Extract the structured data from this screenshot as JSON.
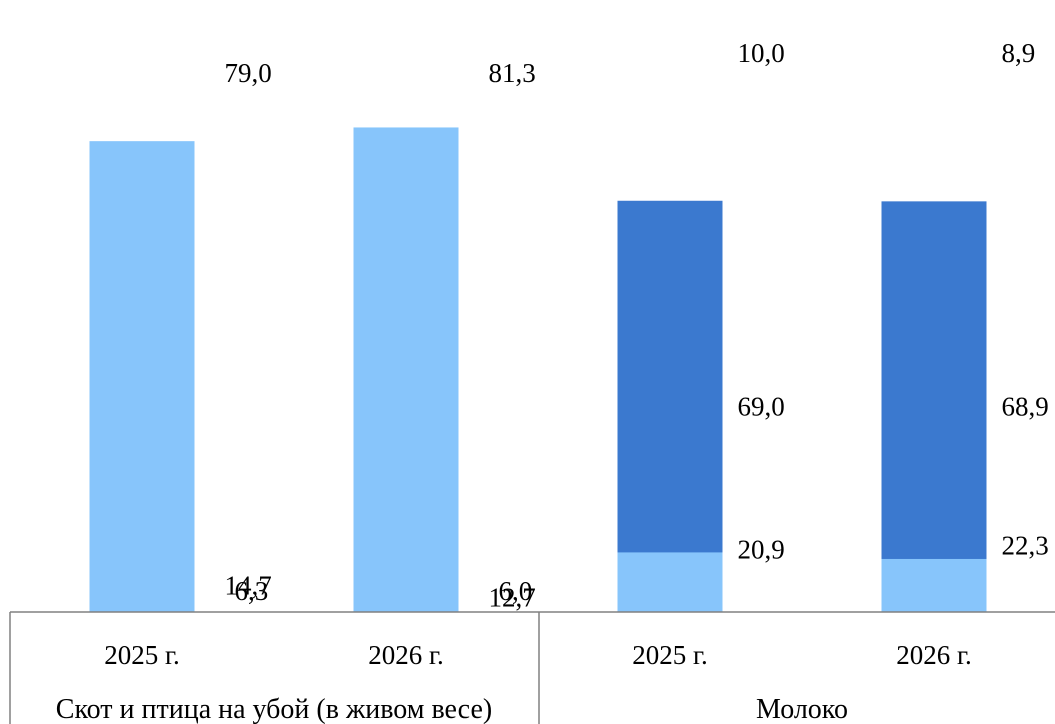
{
  "chart_data": {
    "type": "bar",
    "stacked": true,
    "percent_stacked": true,
    "ylim": [
      0,
      100
    ],
    "categories": [
      "2025 г.",
      "2026 г.",
      "2025 г.",
      "2026 г."
    ],
    "groups": [
      {
        "label": "Скот и птица на убой (в живом весе)",
        "categories": [
          "2025 г.",
          "2026 г."
        ]
      },
      {
        "label": "Молоко",
        "categories": [
          "2025 г.",
          "2026 г."
        ]
      }
    ],
    "series": [
      {
        "color": "#3d3a9c",
        "values": [
          6.3,
          6.0,
          20.9,
          22.3
        ],
        "labels": [
          "6,3",
          "6,0",
          "20,9",
          "22,3"
        ]
      },
      {
        "color": "#3b79cf",
        "values": [
          14.7,
          12.7,
          69.0,
          68.9
        ],
        "labels": [
          "14,7",
          "12,7",
          "69,0",
          "68,9"
        ]
      },
      {
        "color": "#87c5fb",
        "values": [
          79.0,
          81.3,
          10.0,
          8.9
        ],
        "labels": [
          "79,0",
          "81,3",
          "10,0",
          "8,9"
        ]
      }
    ],
    "legend": "none",
    "grid": false
  }
}
